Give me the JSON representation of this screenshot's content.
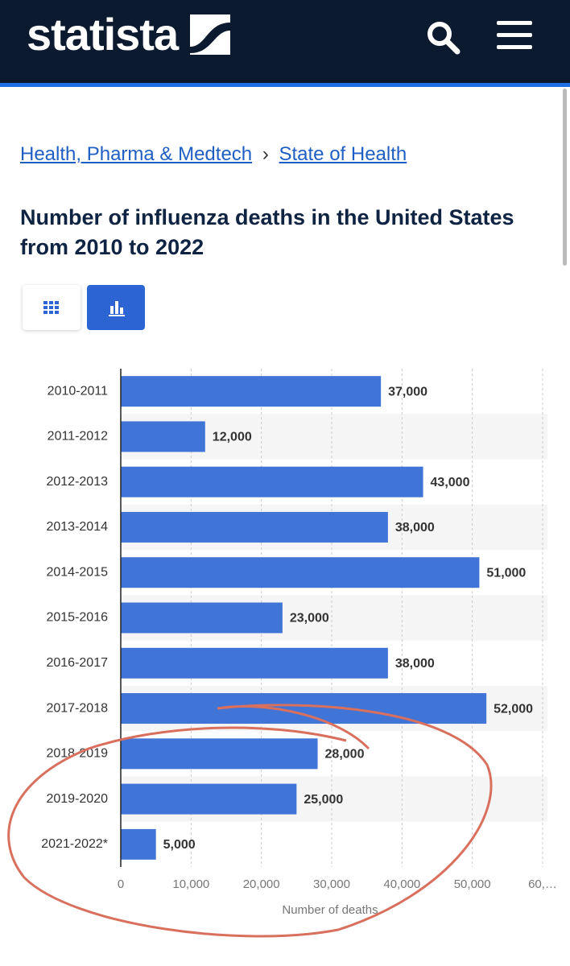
{
  "header": {
    "logo": "statista"
  },
  "breadcrumbs": [
    "Health, Pharma & Medtech",
    "State of Health"
  ],
  "breadcrumb_separator": "›",
  "chart_data": {
    "type": "hbar",
    "title": "Number of influenza deaths in the United States from 2010 to 2022",
    "categories": [
      "2010-2011",
      "2011-2012",
      "2012-2013",
      "2013-2014",
      "2014-2015",
      "2015-2016",
      "2016-2017",
      "2017-2018",
      "2018-2019",
      "2019-2020",
      "2021-2022*"
    ],
    "values": [
      37000,
      12000,
      43000,
      38000,
      51000,
      23000,
      38000,
      52000,
      28000,
      25000,
      5000
    ],
    "value_labels": [
      "37,000",
      "12,000",
      "43,000",
      "38,000",
      "51,000",
      "23,000",
      "38,000",
      "52,000",
      "28,000",
      "25,000",
      "5,000"
    ],
    "color": "#4174d7",
    "xlabel": "Number of deaths",
    "xlim": [
      0,
      60000
    ],
    "xticks": [
      0,
      {
        "value": 10000,
        "label": "10,000"
      },
      {
        "value": 20000,
        "label": "20,000"
      },
      {
        "value": 30000,
        "label": "30,000"
      },
      {
        "value": 40000,
        "label": "40,000"
      },
      {
        "value": 50000,
        "label": "50,000"
      },
      {
        "value": 60000,
        "label": "60,…"
      }
    ],
    "grid": true
  }
}
